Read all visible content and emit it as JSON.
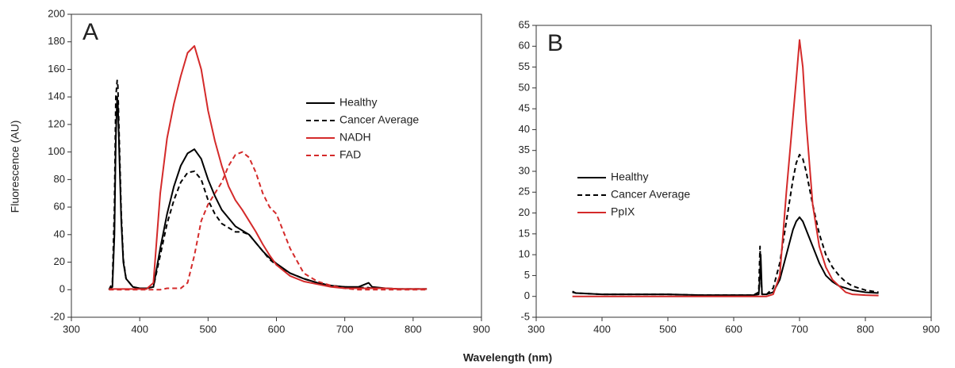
{
  "xlabel": "Wavelength (nm)",
  "chart_data": [
    {
      "type": "line",
      "label": "A",
      "ylabel": "Fluorescence (AU)",
      "xlim": [
        300,
        900
      ],
      "xticks": [
        300,
        400,
        500,
        600,
        700,
        800,
        900
      ],
      "ylim": [
        -20,
        200
      ],
      "yticks": [
        -20,
        0,
        20,
        40,
        60,
        80,
        100,
        120,
        140,
        160,
        180,
        200
      ],
      "legend": "upper right",
      "x": [
        355,
        360,
        363,
        365,
        367,
        368,
        370,
        373,
        376,
        380,
        390,
        400,
        410,
        420,
        430,
        440,
        450,
        460,
        470,
        480,
        490,
        500,
        510,
        520,
        530,
        540,
        550,
        560,
        570,
        580,
        590,
        600,
        620,
        640,
        660,
        680,
        700,
        720,
        730,
        735,
        740,
        760,
        780,
        800,
        820
      ],
      "series": [
        {
          "name": "Healthy",
          "color": "#000000",
          "dash": false,
          "values": [
            0,
            2,
            40,
            110,
            140,
            135,
            100,
            50,
            20,
            8,
            2,
            1,
            1,
            2,
            30,
            55,
            75,
            90,
            99,
            102,
            95,
            80,
            68,
            58,
            52,
            46,
            43,
            40,
            34,
            28,
            23,
            19,
            12,
            8,
            5,
            3,
            2,
            2,
            4,
            5,
            2,
            1,
            0.5,
            0.5,
            0.5
          ]
        },
        {
          "name": "Cancer Average",
          "color": "#000000",
          "dash": true,
          "values": [
            0,
            5,
            60,
            140,
            152,
            148,
            110,
            55,
            22,
            8,
            2,
            1,
            1,
            2,
            25,
            48,
            65,
            78,
            85,
            86,
            80,
            65,
            55,
            48,
            45,
            42,
            42,
            40,
            34,
            28,
            22,
            18,
            12,
            8,
            5,
            3,
            2,
            1.5,
            1.5,
            1.5,
            1,
            1,
            0.5,
            0.5,
            0.5
          ]
        },
        {
          "name": "NADH",
          "color": "#d42a2a",
          "dash": false,
          "values": [
            0.5,
            0.5,
            0.5,
            0.5,
            0.5,
            0.5,
            0.5,
            0.5,
            0.5,
            0.5,
            0.5,
            0.5,
            0.5,
            5,
            70,
            110,
            135,
            155,
            172,
            177,
            160,
            130,
            108,
            90,
            75,
            65,
            58,
            50,
            42,
            33,
            25,
            18,
            10,
            6,
            4,
            2,
            1,
            1,
            1,
            1,
            1,
            1,
            0.5,
            0.5,
            0.5
          ]
        },
        {
          "name": "FAD",
          "color": "#d42a2a",
          "dash": true,
          "values": [
            0,
            0,
            0,
            0,
            0,
            0,
            0,
            0,
            0,
            0,
            0,
            0,
            0,
            0,
            0,
            1,
            1,
            1,
            5,
            25,
            50,
            62,
            70,
            78,
            90,
            98,
            100,
            96,
            85,
            70,
            60,
            55,
            30,
            12,
            6,
            3,
            1,
            0,
            0,
            0,
            0,
            0,
            0,
            0,
            0
          ]
        }
      ]
    },
    {
      "type": "line",
      "label": "B",
      "xlim": [
        300,
        900
      ],
      "xticks": [
        300,
        400,
        500,
        600,
        700,
        800,
        900
      ],
      "ylim": [
        -5,
        65
      ],
      "yticks": [
        -5,
        0,
        5,
        10,
        15,
        20,
        25,
        30,
        35,
        40,
        45,
        50,
        55,
        60,
        65
      ],
      "legend": "center left",
      "x": [
        355,
        360,
        400,
        450,
        500,
        550,
        600,
        630,
        638,
        640,
        641,
        643,
        650,
        660,
        670,
        680,
        690,
        695,
        700,
        705,
        710,
        720,
        730,
        740,
        750,
        760,
        770,
        780,
        800,
        820
      ],
      "series": [
        {
          "name": "Healthy",
          "color": "#000000",
          "dash": false,
          "values": [
            1,
            0.8,
            0.5,
            0.5,
            0.5,
            0.3,
            0.3,
            0.3,
            0.5,
            5,
            10,
            0.5,
            0.5,
            1,
            4,
            10,
            16,
            18,
            19,
            18,
            16,
            12,
            8,
            5,
            3.5,
            2.5,
            2,
            1.5,
            1,
            0.8
          ]
        },
        {
          "name": "Cancer Average",
          "color": "#000000",
          "dash": true,
          "values": [
            1.2,
            0.8,
            0.5,
            0.5,
            0.5,
            0.3,
            0.3,
            0.3,
            1,
            12,
            6,
            0.5,
            0.5,
            2,
            8,
            18,
            28,
            32,
            34,
            33,
            30,
            22,
            15,
            10,
            7,
            5,
            3.5,
            2.5,
            1.5,
            1
          ]
        },
        {
          "name": "PpIX",
          "color": "#d42a2a",
          "dash": false,
          "values": [
            0,
            0,
            0,
            0,
            0,
            0,
            0,
            0,
            0,
            0,
            0,
            0,
            0,
            0.5,
            5,
            25,
            43,
            52,
            61.5,
            55,
            42,
            22,
            12,
            7,
            4,
            2.5,
            1,
            0.5,
            0.3,
            0.2
          ]
        }
      ]
    }
  ]
}
